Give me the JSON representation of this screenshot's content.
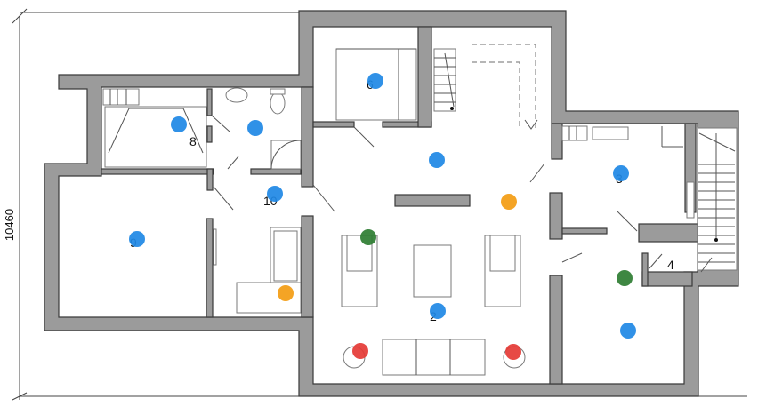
{
  "dimension": {
    "label": "10460"
  },
  "rooms": [
    {
      "id": "room-2",
      "label": "2"
    },
    {
      "id": "room-3",
      "label": "3"
    },
    {
      "id": "room-4",
      "label": "4"
    },
    {
      "id": "room-6",
      "label": "6"
    },
    {
      "id": "room-8",
      "label": "8"
    },
    {
      "id": "room-9",
      "label": "9"
    },
    {
      "id": "room-10",
      "label": "10"
    }
  ],
  "markers": {
    "colors": {
      "blue": "#1e88e5",
      "green": "#2e7d32",
      "orange": "#f39c12",
      "red": "#e53935"
    },
    "items": [
      {
        "name": "blue-marker-room-6",
        "color": "blue"
      },
      {
        "name": "blue-marker-room-8-a",
        "color": "blue"
      },
      {
        "name": "blue-marker-room-8-b",
        "color": "blue"
      },
      {
        "name": "blue-marker-hall",
        "color": "blue"
      },
      {
        "name": "blue-marker-room-10",
        "color": "blue"
      },
      {
        "name": "blue-marker-room-9",
        "color": "blue"
      },
      {
        "name": "blue-marker-room-3",
        "color": "blue"
      },
      {
        "name": "blue-marker-room-2",
        "color": "blue"
      },
      {
        "name": "blue-marker-room-4",
        "color": "blue"
      },
      {
        "name": "orange-marker-center",
        "color": "orange"
      },
      {
        "name": "orange-marker-sofa",
        "color": "orange"
      },
      {
        "name": "green-marker-living",
        "color": "green"
      },
      {
        "name": "green-marker-room-4",
        "color": "green"
      },
      {
        "name": "red-marker-left",
        "color": "red"
      },
      {
        "name": "red-marker-right",
        "color": "red"
      }
    ]
  }
}
